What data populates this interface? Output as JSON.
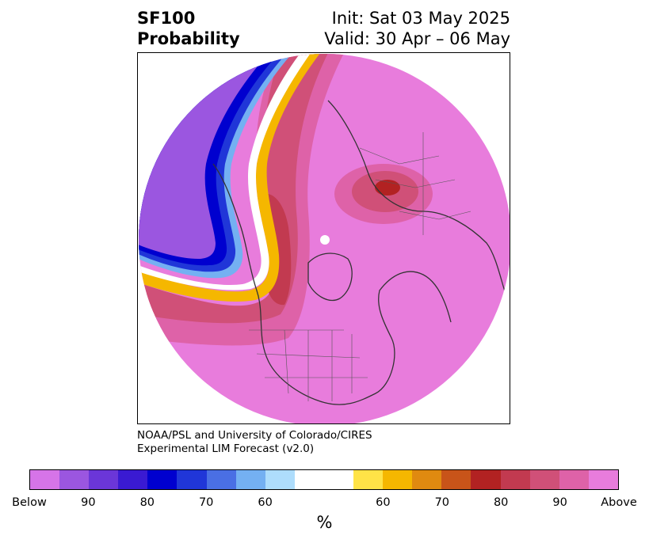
{
  "header": {
    "left_line1": "SF100",
    "left_line2": "Probability",
    "right_line1": "Init: Sat 03 May 2025",
    "right_line2": "Valid: 30 Apr – 06 May"
  },
  "credit": {
    "line1": "NOAA/PSL and University of Colorado/CIRES",
    "line2": "Experimental LIM Forecast (v2.0)"
  },
  "colorbar": {
    "colors": [
      "#d674e8",
      "#9b56e0",
      "#6b36d8",
      "#3a1ad2",
      "#0000cf",
      "#2036d8",
      "#4a6fe4",
      "#74b0f2",
      "#aeddfc",
      "#ffffff",
      "#ffe347",
      "#f5b700",
      "#e08a10",
      "#c85419",
      "#b22222",
      "#c23a50",
      "#d05078",
      "#de62a8",
      "#e87cdc"
    ],
    "ticks": [
      "Below",
      "90",
      "80",
      "70",
      "60",
      "60",
      "70",
      "80",
      "90",
      "Above"
    ],
    "label": "%"
  },
  "map": {
    "projection": "north-polar-orthographic",
    "ocean_fill": "#e87cdc",
    "fields": [
      {
        "region": "northeast-pacific-trough",
        "category": "Below",
        "colors": [
          "#9b56e0",
          "#0000cf",
          "#74b0f2"
        ]
      },
      {
        "region": "western-north-america",
        "category": "Above",
        "colors": [
          "#b22222",
          "#d05078"
        ]
      },
      {
        "region": "northern-russia",
        "category": "Above",
        "colors": [
          "#b22222",
          "#c23a50"
        ]
      }
    ]
  }
}
